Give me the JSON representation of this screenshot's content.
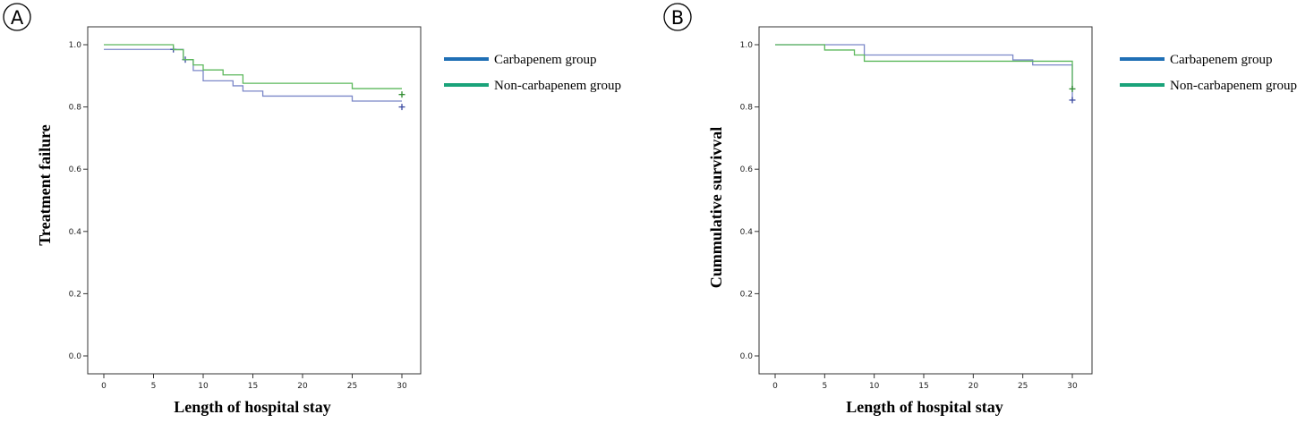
{
  "chart_data": [
    {
      "panel": "A",
      "type": "line",
      "step": true,
      "xlabel": "Length of hospital stay",
      "ylabel": "Treatment failure",
      "xlim": [
        0,
        30
      ],
      "ylim": [
        0,
        1.0
      ],
      "xticks": [
        "0",
        "5",
        "10",
        "15",
        "20",
        "25",
        "30"
      ],
      "yticks": [
        "0.0",
        "0.2",
        "0.4",
        "0.6",
        "0.8",
        "1.0"
      ],
      "grid": false,
      "legend_position": "right",
      "series": [
        {
          "name": "Carbapenem group",
          "color": "#7b87c8",
          "legend_color": "#1f6fb5",
          "x": [
            0,
            8,
            9,
            10,
            13,
            14,
            16,
            25,
            30
          ],
          "y": [
            0.985,
            0.952,
            0.917,
            0.884,
            0.868,
            0.851,
            0.835,
            0.819,
            0.819
          ],
          "censored": [
            [
              7,
              0.985
            ],
            [
              8.2,
              0.952
            ],
            [
              30,
              0.8
            ]
          ]
        },
        {
          "name": "Non-carbapenem group",
          "color": "#5cb85c",
          "legend_color": "#1aa37a",
          "x": [
            0,
            7,
            8,
            9,
            10,
            12,
            14,
            25,
            30
          ],
          "y": [
            1.0,
            0.984,
            0.952,
            0.935,
            0.919,
            0.903,
            0.876,
            0.859,
            0.859
          ],
          "censored": [
            [
              30,
              0.84
            ]
          ]
        }
      ]
    },
    {
      "panel": "B",
      "type": "line",
      "step": true,
      "xlabel": "Length of hospital stay",
      "ylabel": "Cummulative survivval",
      "xlim": [
        0,
        30
      ],
      "ylim": [
        0,
        1.0
      ],
      "xticks": [
        "0",
        "5",
        "10",
        "15",
        "20",
        "25",
        "30"
      ],
      "yticks": [
        "0.0",
        "0.2",
        "0.4",
        "0.6",
        "0.8",
        "1.0"
      ],
      "grid": false,
      "legend_position": "right",
      "series": [
        {
          "name": "Carbapenem group",
          "color": "#7b87c8",
          "legend_color": "#1f6fb5",
          "x": [
            0,
            9,
            24,
            26,
            30
          ],
          "y": [
            1.0,
            0.967,
            0.951,
            0.935,
            0.935
          ],
          "drop_to": 0.82,
          "censored": [
            [
              30,
              0.822
            ]
          ]
        },
        {
          "name": "Non-carbapenem group",
          "color": "#5cb85c",
          "legend_color": "#1aa37a",
          "x": [
            0,
            5,
            8,
            9,
            30
          ],
          "y": [
            1.0,
            0.983,
            0.967,
            0.947,
            0.947
          ],
          "drop_to": 0.86,
          "censored": [
            [
              30,
              0.858
            ]
          ]
        }
      ]
    }
  ]
}
